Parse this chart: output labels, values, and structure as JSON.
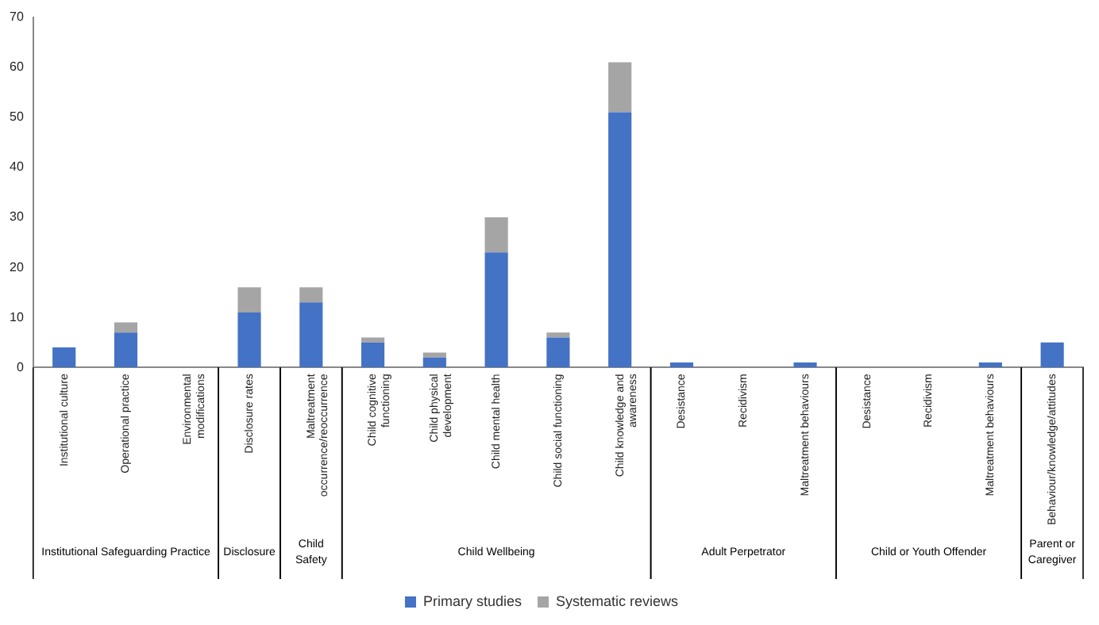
{
  "chart_data": {
    "type": "bar",
    "stacked": true,
    "categories": [
      "Institutional culture",
      "Operational practice",
      "Environmental modifications",
      "Disclosure rates",
      "Maltreatment occurrence/reoccurrence",
      "Child cognitive functioning",
      "Child physical development",
      "Child mental health",
      "Child social functioning",
      "Child knowledge and awareness",
      "Desistance",
      "Recidivism",
      "Maltreatment behaviours",
      "Desistance",
      "Recidivism",
      "Maltreatment behaviours",
      "Behaviour/knowledge/attitudes"
    ],
    "series": [
      {
        "name": "Primary studies",
        "color": "#4472c4",
        "values": [
          4,
          7,
          0,
          11,
          13,
          5,
          2,
          23,
          6,
          51,
          1,
          0,
          1,
          0,
          0,
          1,
          5
        ]
      },
      {
        "name": "Systematic reviews",
        "color": "#a5a5a5",
        "values": [
          0,
          2,
          0,
          5,
          3,
          1,
          1,
          7,
          1,
          10,
          0,
          0,
          0,
          0,
          0,
          0,
          0
        ]
      }
    ],
    "annotations": [
      "Institutional Safeguarding Practice",
      "Disclosure",
      "Child Safety",
      "Child Wellbeing",
      "Adult Perpetrator",
      "Child or Youth Offender",
      "Parent or Caregiver"
    ],
    "ylim": [
      0,
      70
    ],
    "yticks": [
      0,
      10,
      20,
      30,
      40,
      50,
      60,
      70
    ],
    "grid": false,
    "legend": "bottom"
  }
}
